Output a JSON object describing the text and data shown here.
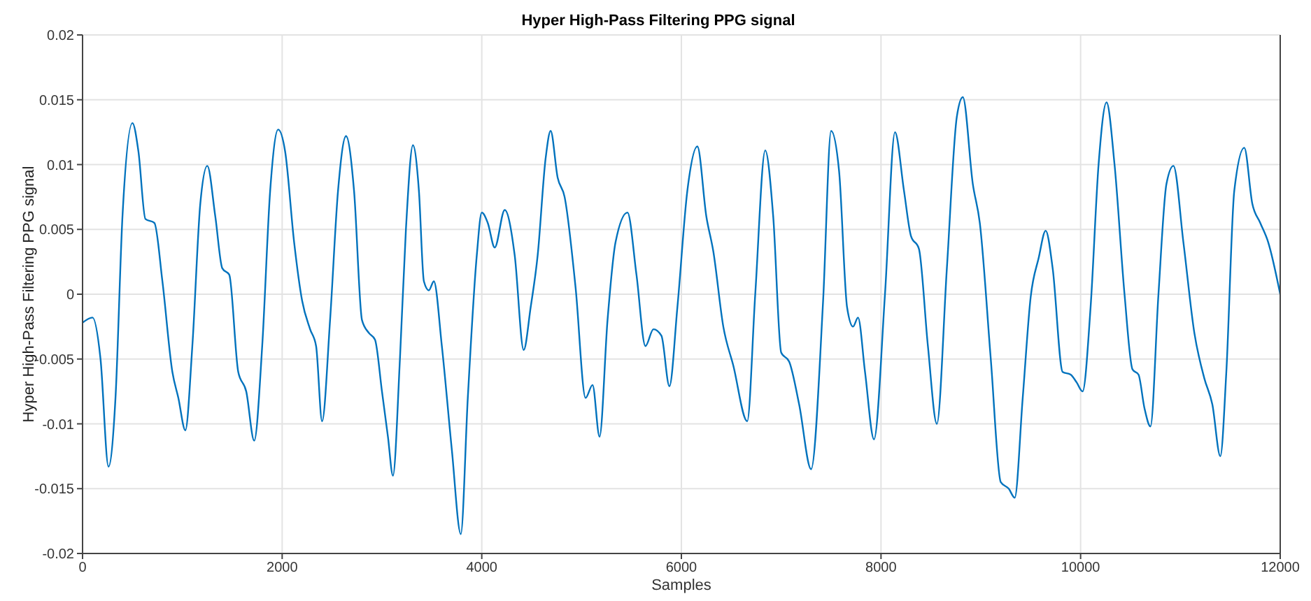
{
  "chart_data": {
    "type": "line",
    "title": "Hyper High-Pass Filtering PPG signal",
    "xlabel": "Samples",
    "ylabel": "Hyper High-Pass Filtering PPG signal",
    "xlim": [
      0,
      12000
    ],
    "xticks": [
      0,
      2000,
      4000,
      6000,
      8000,
      10000,
      12000
    ],
    "ylim": [
      -0.02,
      0.02
    ],
    "yticks": [
      -0.02,
      -0.015,
      -0.01,
      -0.005,
      0,
      0.005,
      0.01,
      0.015,
      0.02
    ],
    "grid": true,
    "marker": "none",
    "line_style": "solid",
    "x": [
      0,
      100,
      180,
      260,
      330,
      400,
      500,
      560,
      630,
      720,
      800,
      900,
      960,
      1030,
      1100,
      1180,
      1250,
      1330,
      1400,
      1470,
      1560,
      1640,
      1720,
      1800,
      1880,
      1960,
      2030,
      2120,
      2200,
      2280,
      2340,
      2400,
      2480,
      2560,
      2640,
      2720,
      2800,
      2870,
      2930,
      3000,
      3060,
      3110,
      3180,
      3240,
      3310,
      3370,
      3420,
      3470,
      3520,
      3600,
      3700,
      3790,
      3860,
      3950,
      4000,
      4060,
      4130,
      4230,
      4330,
      4420,
      4490,
      4560,
      4640,
      4690,
      4760,
      4830,
      4940,
      5040,
      5110,
      5180,
      5260,
      5340,
      5460,
      5550,
      5640,
      5720,
      5800,
      5880,
      5960,
      6060,
      6160,
      6250,
      6320,
      6420,
      6520,
      6660,
      6740,
      6840,
      6920,
      7000,
      7080,
      7180,
      7300,
      7420,
      7500,
      7580,
      7660,
      7720,
      7770,
      7840,
      7930,
      8040,
      8140,
      8230,
      8300,
      8380,
      8470,
      8560,
      8660,
      8760,
      8820,
      8920,
      8990,
      9100,
      9200,
      9280,
      9340,
      9420,
      9500,
      9580,
      9650,
      9720,
      9820,
      9900,
      9960,
      10020,
      10100,
      10180,
      10260,
      10340,
      10440,
      10520,
      10580,
      10640,
      10700,
      10780,
      10860,
      10930,
      11030,
      11140,
      11240,
      11320,
      11400,
      11460,
      11540,
      11640,
      11720,
      11800,
      11880,
      12000
    ],
    "series": [
      {
        "color": "#0072bd",
        "values": [
          -0.0022,
          -0.0018,
          -0.005,
          -0.0133,
          -0.008,
          0.006,
          0.0132,
          0.011,
          0.0058,
          0.0055,
          0.001,
          -0.006,
          -0.008,
          -0.0105,
          -0.004,
          0.007,
          0.0099,
          0.006,
          0.002,
          0.0015,
          -0.006,
          -0.0075,
          -0.0113,
          -0.004,
          0.008,
          0.0127,
          0.011,
          0.004,
          -0.0005,
          -0.0027,
          -0.004,
          -0.0098,
          -0.002,
          0.008,
          0.0122,
          0.008,
          -0.002,
          -0.003,
          -0.0035,
          -0.0075,
          -0.011,
          -0.014,
          -0.005,
          0.005,
          0.0115,
          0.008,
          0.001,
          0.0003,
          0.001,
          -0.004,
          -0.012,
          -0.0185,
          -0.008,
          0.003,
          0.0063,
          0.0055,
          0.0036,
          0.0065,
          0.003,
          -0.0043,
          -0.001,
          0.003,
          0.0105,
          0.0126,
          0.009,
          0.0075,
          0.0005,
          -0.008,
          -0.007,
          -0.011,
          -0.002,
          0.004,
          0.0063,
          0.0015,
          -0.004,
          -0.0027,
          -0.0032,
          -0.0071,
          -0.001,
          0.008,
          0.0114,
          0.006,
          0.0033,
          -0.0025,
          -0.0055,
          -0.0098,
          0,
          0.0111,
          0.006,
          -0.0045,
          -0.0052,
          -0.0085,
          -0.0135,
          -0.0005,
          0.0126,
          0.0095,
          -0.001,
          -0.0025,
          -0.0018,
          -0.006,
          -0.0112,
          0,
          0.0125,
          0.008,
          0.0045,
          0.0035,
          -0.004,
          -0.01,
          0.002,
          0.0137,
          0.0152,
          0.0085,
          0.0055,
          -0.005,
          -0.0145,
          -0.015,
          -0.0157,
          -0.008,
          -0.0002,
          0.0028,
          0.0049,
          0.002,
          -0.006,
          -0.0062,
          -0.0068,
          -0.0075,
          -0.001,
          0.01,
          0.0148,
          0.01,
          0,
          -0.0058,
          -0.0062,
          -0.0088,
          -0.0102,
          0,
          0.0085,
          0.0099,
          0.004,
          -0.003,
          -0.0065,
          -0.0085,
          -0.0125,
          -0.006,
          0.008,
          0.0113,
          0.007,
          0.0055,
          0.004,
          0
        ]
      }
    ]
  }
}
